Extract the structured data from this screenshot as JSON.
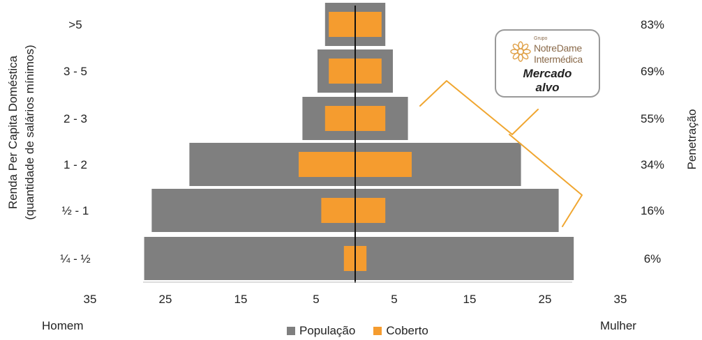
{
  "chart_data": {
    "type": "bar",
    "orientation": "horizontal-diverging",
    "categories": [
      "¼ - ½",
      "½ - 1",
      "1 - 2",
      "2 - 3",
      "3 - 5",
      ">5"
    ],
    "series": [
      {
        "name": "População",
        "color": "#7f7f7f",
        "homem": [
          28,
          27,
          22,
          7,
          5,
          4
        ],
        "mulher": [
          29,
          27,
          22,
          7,
          5,
          4
        ]
      },
      {
        "name": "Coberto",
        "color": "#f59c2f",
        "homem": [
          1.5,
          4.5,
          7.5,
          4,
          3.5,
          3.5
        ],
        "mulher": [
          1.5,
          4,
          7.5,
          4,
          3.5,
          3.5
        ]
      }
    ],
    "penetration_labels": [
      "6%",
      "16%",
      "34%",
      "55%",
      "69%",
      "83%"
    ],
    "ylabel": "Renda Per Capita Doméstica\n(quantidade de salários mínimos)",
    "y2label": "Penetração",
    "x_ticks": [
      "35",
      "25",
      "15",
      "5",
      "5",
      "15",
      "25",
      "35"
    ],
    "x_tick_values": [
      -35,
      -25,
      -15,
      -5,
      5,
      15,
      25,
      35
    ],
    "xlim": [
      -35,
      35
    ],
    "left_label": "Homem",
    "right_label": "Mulher",
    "legend_position": "bottom"
  },
  "callout": {
    "logo_small": "Grupo",
    "logo_line1": "NotreDame",
    "logo_line2": "Intermédica",
    "text_line1": "Mercado",
    "text_line2": "alvo",
    "logo_icon": "notredame-flower-icon"
  }
}
